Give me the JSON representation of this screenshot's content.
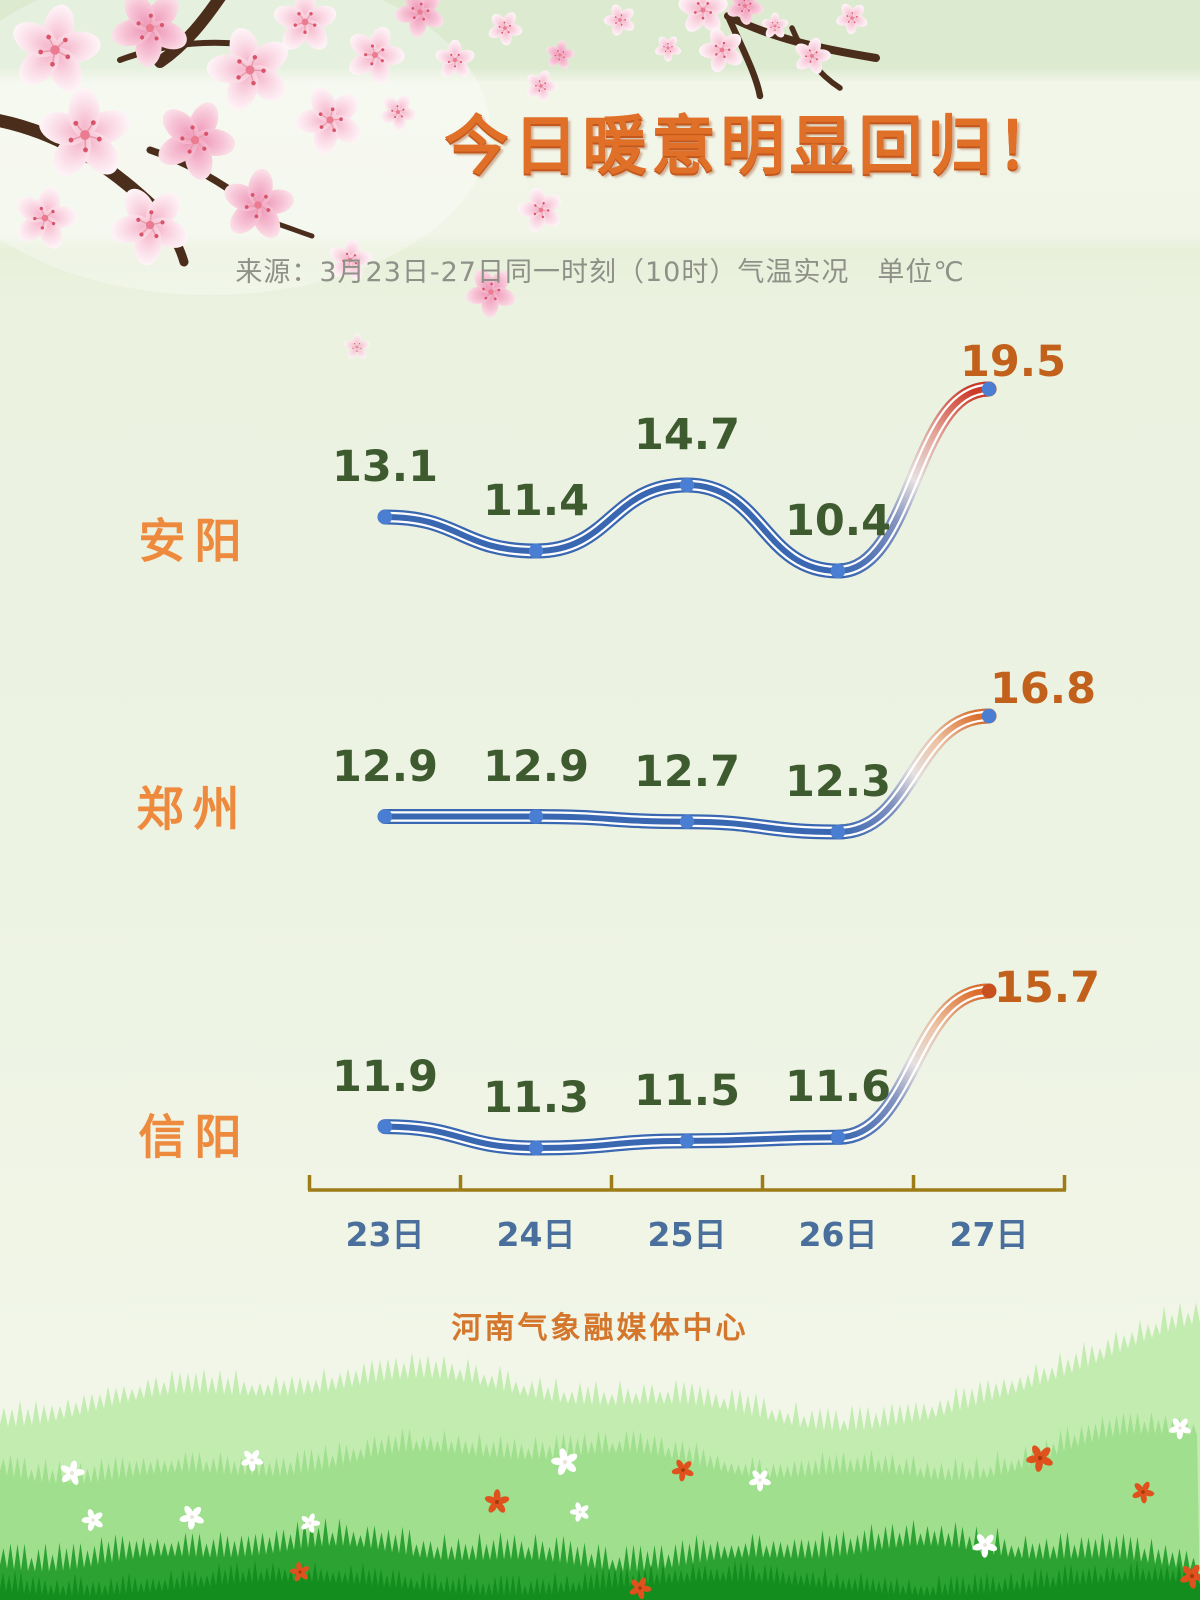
{
  "header": {
    "title": "今日暖意明显回归！",
    "source_note": "来源：3月23日-27日同一时刻（10时）气温实况　单位℃"
  },
  "footer": {
    "credit": "河南气象融媒体中心"
  },
  "colors": {
    "title_orange": "#e06f28",
    "city_orange": "#ee8a3d",
    "value_green": "#3e5a2f",
    "value_orange": "#c2611c",
    "line_blue": "#3a67b1",
    "dot_blue": "#4a7ed2",
    "rise_red": "#cd3a28",
    "rise_orange": "#dd6f2c",
    "rise_dot": "#c8501e",
    "axis_gold": "#9e7d18",
    "axis_label_blue": "#4a6f9c"
  },
  "chart_data": {
    "type": "line",
    "title": "今日暖意明显回归！",
    "subtitle": "来源：3月23日-27日同一时刻（10时）气温实况",
    "unit": "℃",
    "time_of_day": "10时",
    "categories": [
      "23日",
      "24日",
      "25日",
      "26日",
      "27日"
    ],
    "series": [
      {
        "name": "安阳",
        "values": [
          13.1,
          11.4,
          14.7,
          10.4,
          19.5
        ]
      },
      {
        "name": "郑州",
        "values": [
          12.9,
          12.9,
          12.7,
          12.3,
          16.8
        ]
      },
      {
        "name": "信阳",
        "values": [
          11.9,
          11.3,
          11.5,
          11.6,
          15.7
        ]
      }
    ],
    "grid": false,
    "legend_position": "left-of-each-line",
    "highlight_last_point": true
  }
}
